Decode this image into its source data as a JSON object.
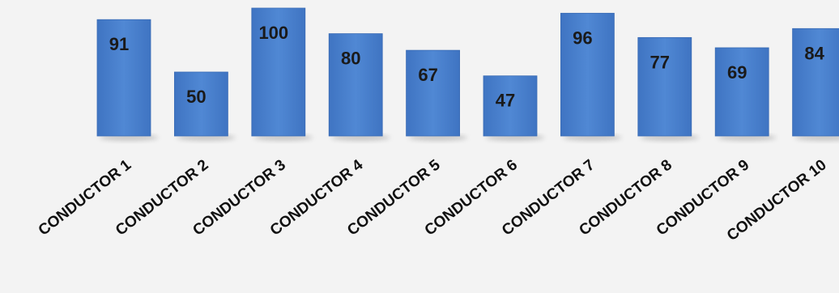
{
  "chart_data": {
    "type": "bar",
    "categories": [
      "CONDUCTOR 1",
      "CONDUCTOR 2",
      "CONDUCTOR 3",
      "CONDUCTOR 4",
      "CONDUCTOR 5",
      "CONDUCTOR 6",
      "CONDUCTOR 7",
      "CONDUCTOR 8",
      "CONDUCTOR 9",
      "CONDUCTOR 10"
    ],
    "values": [
      91,
      50,
      100,
      80,
      67,
      47,
      96,
      77,
      69,
      84
    ],
    "title": "",
    "xlabel": "",
    "ylabel": "",
    "ylim": [
      0,
      100
    ],
    "grid": false,
    "data_labels": true,
    "colors": {
      "bar": "#4a7fcb",
      "bar_edge": "#3a6cb5",
      "background": "#f3f3f3",
      "label": "#111111"
    }
  }
}
